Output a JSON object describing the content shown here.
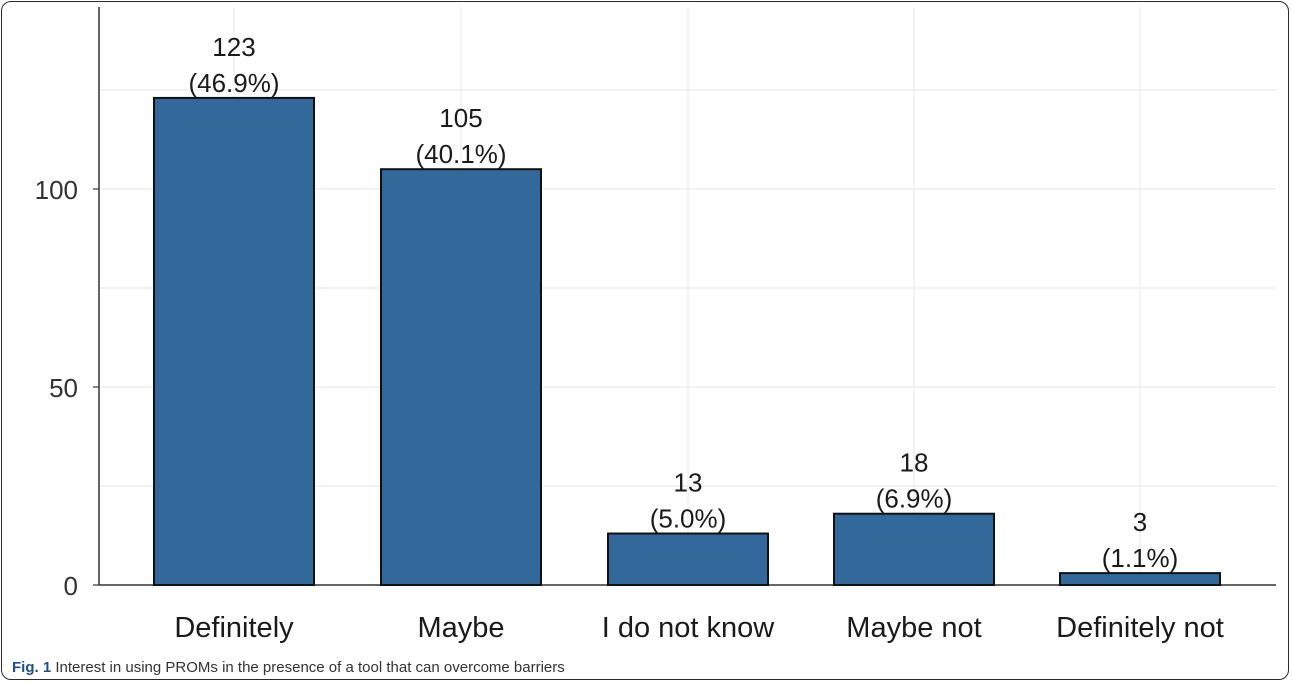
{
  "caption": {
    "label": "Fig. 1",
    "text": "Interest in using PROMs in the presence of a tool that can overcome barriers"
  },
  "chart_data": {
    "type": "bar",
    "categories": [
      "Definitely",
      "Maybe",
      "I do not know",
      "Maybe not",
      "Definitely not"
    ],
    "values": [
      123,
      105,
      13,
      18,
      3
    ],
    "percent_labels": [
      "(46.9%)",
      "(40.1%)",
      "(5.0%)",
      "(6.9%)",
      "(1.1%)"
    ],
    "ylim": [
      0,
      140
    ],
    "yticks": [
      0,
      50,
      100
    ],
    "grid": true,
    "bar_color": "#33689b",
    "bar_edge_color": "#111111"
  }
}
